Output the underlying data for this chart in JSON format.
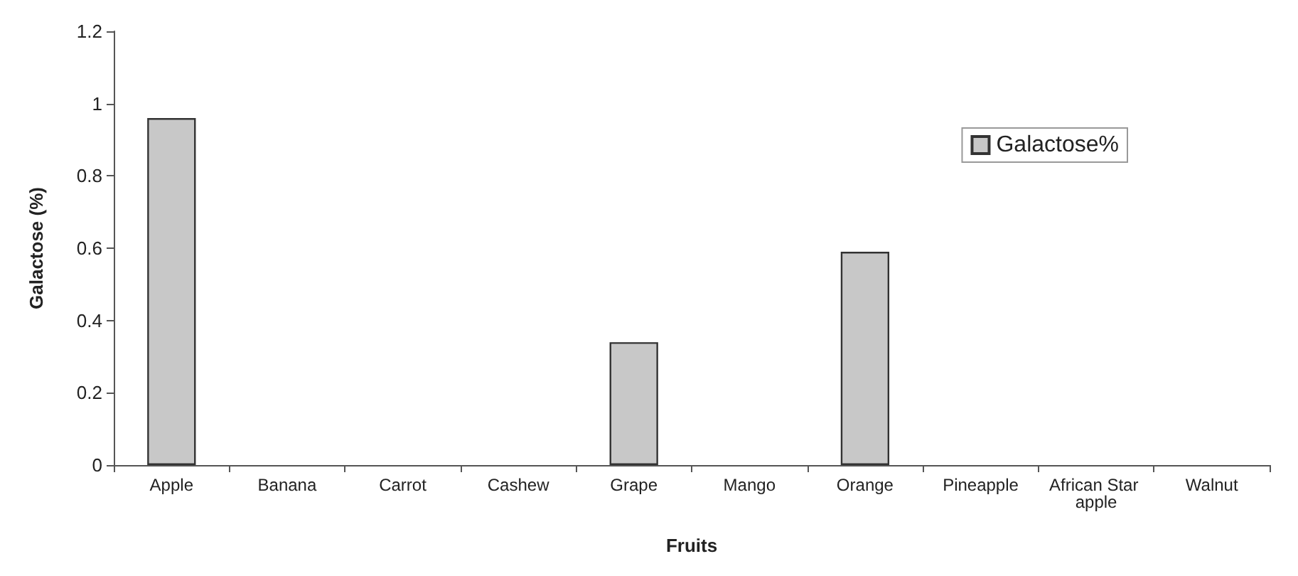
{
  "chart_data": {
    "type": "bar",
    "xlabel": "Fruits",
    "ylabel": "Galactose (%)",
    "categories": [
      "Apple",
      "Banana",
      "Carrot",
      "Cashew",
      "Grape",
      "Mango",
      "Orange",
      "Pineapple",
      "African Star apple",
      "Walnut"
    ],
    "series": [
      {
        "name": "Galactose%",
        "color": "#c8c8c8",
        "values": [
          0.96,
          0,
          0,
          0,
          0.34,
          0,
          0.59,
          0,
          0,
          0
        ]
      }
    ],
    "ylim": [
      0,
      1.2
    ],
    "yticks": [
      0,
      0.2,
      0.4,
      0.6,
      0.8,
      1,
      1.2
    ],
    "grid": false,
    "legend": "top right"
  }
}
